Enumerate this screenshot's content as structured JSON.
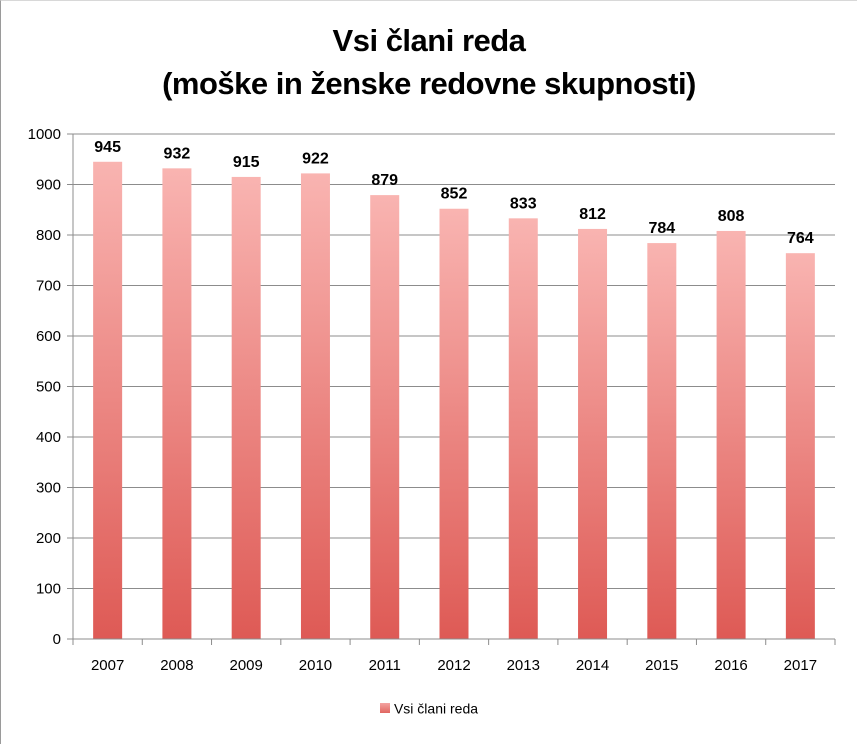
{
  "chart_data": {
    "type": "bar",
    "title": "Vsi člani reda",
    "subtitle": "(moške in ženske redovne skupnosti)",
    "categories": [
      "2007",
      "2008",
      "2009",
      "2010",
      "2011",
      "2012",
      "2013",
      "2014",
      "2015",
      "2016",
      "2017"
    ],
    "series": [
      {
        "name": "Vsi člani reda",
        "values": [
          945,
          932,
          915,
          922,
          879,
          852,
          833,
          812,
          784,
          808,
          764
        ],
        "color_top": "#f9b4b1",
        "color_bottom": "#de5a55"
      }
    ],
    "ylim": [
      0,
      1000
    ],
    "yticks": [
      0,
      100,
      200,
      300,
      400,
      500,
      600,
      700,
      800,
      900,
      1000
    ],
    "grid": true,
    "data_labels": true,
    "legend_position": "bottom"
  }
}
